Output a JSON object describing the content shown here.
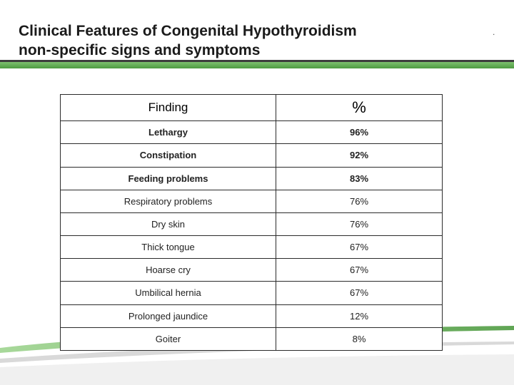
{
  "slide": {
    "title_line1": "Clinical Features of Congenital Hypothyroidism",
    "title_line2": "non-specific signs and symptoms",
    "corner_mark": "."
  },
  "table": {
    "headers": [
      "Finding",
      "%"
    ],
    "rows": [
      {
        "finding": "Lethargy",
        "percent": "96%"
      },
      {
        "finding": "Constipation",
        "percent": "92%"
      },
      {
        "finding": "Feeding problems",
        "percent": "83%"
      },
      {
        "finding": "Respiratory problems",
        "percent": "76%"
      },
      {
        "finding": "Dry skin",
        "percent": "76%"
      },
      {
        "finding": "Thick tongue",
        "percent": "67%"
      },
      {
        "finding": "Hoarse cry",
        "percent": "67%"
      },
      {
        "finding": "Umbilical hernia",
        "percent": "67%"
      },
      {
        "finding": "Prolonged jaundice",
        "percent": "12%"
      },
      {
        "finding": "Goiter",
        "percent": "8%"
      }
    ]
  },
  "colors": {
    "accent_green": "#5aa84c",
    "rule_dark": "#3d3d3d"
  }
}
